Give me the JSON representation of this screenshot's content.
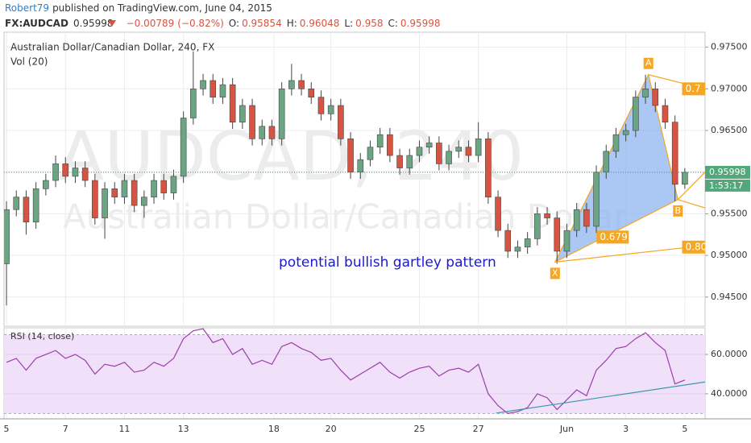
{
  "header": {
    "author": "Robert79",
    "published": "published on TradingView.com, June 04, 2015"
  },
  "chart_data": {
    "type": "candlestick",
    "symbol": "FX:AUDCAD",
    "title": "Australian Dollar/Canadian Dollar, 240, FX",
    "watermark": "AUDCAD, 240",
    "watermark_subtitle": "Australian Dollar/Canadian Dollar",
    "volume_label": "Vol (20)",
    "change": {
      "value": -0.00789,
      "label": "−0.00789"
    },
    "change_pct": {
      "value": -0.82,
      "label": "(−0.82%)"
    },
    "ohlc_labels": [
      "O:",
      "H:",
      "L:",
      "C:"
    ],
    "countdown": "1:53:17",
    "annotation": "potential bullish gartley pattern",
    "up_color": "#6ba583",
    "down_color": "#d75442",
    "open": [
      0.949,
      0.9555,
      0.957,
      0.954,
      0.958,
      0.959,
      0.961,
      0.9595,
      0.9605,
      0.959,
      0.9545,
      0.958,
      0.957,
      0.959,
      0.956,
      0.957,
      0.959,
      0.9575,
      0.9595,
      0.9665,
      0.97,
      0.971,
      0.969,
      0.9705,
      0.966,
      0.968,
      0.964,
      0.9655,
      0.964,
      0.97,
      0.971,
      0.97,
      0.969,
      0.967,
      0.968,
      0.964,
      0.96,
      0.9615,
      0.963,
      0.9645,
      0.962,
      0.9605,
      0.962,
      0.963,
      0.9635,
      0.961,
      0.9625,
      0.963,
      0.962,
      0.964,
      0.957,
      0.953,
      0.9505,
      0.951,
      0.952,
      0.955,
      0.9545,
      0.9505,
      0.953,
      0.9555,
      0.9535,
      0.96,
      0.9625,
      0.9645,
      0.965,
      0.969,
      0.97,
      0.968,
      0.966,
      0.95854
    ],
    "high": [
      0.9565,
      0.9578,
      0.9578,
      0.9588,
      0.9598,
      0.962,
      0.9618,
      0.9613,
      0.9613,
      0.9598,
      0.9588,
      0.9588,
      0.9598,
      0.9598,
      0.9578,
      0.9598,
      0.9598,
      0.9603,
      0.9673,
      0.9745,
      0.9718,
      0.9718,
      0.9713,
      0.9713,
      0.9688,
      0.9688,
      0.9663,
      0.9663,
      0.9708,
      0.973,
      0.9718,
      0.9708,
      0.9698,
      0.9688,
      0.9688,
      0.9648,
      0.9623,
      0.9638,
      0.9653,
      0.9653,
      0.9628,
      0.9628,
      0.9638,
      0.9643,
      0.9643,
      0.9633,
      0.9638,
      0.9638,
      0.966,
      0.9648,
      0.9578,
      0.9538,
      0.9518,
      0.9528,
      0.9558,
      0.9558,
      0.9553,
      0.9538,
      0.9563,
      0.9563,
      0.9608,
      0.9633,
      0.9653,
      0.9658,
      0.9698,
      0.9717,
      0.9708,
      0.9688,
      0.9668,
      0.96048
    ],
    "low": [
      0.944,
      0.9547,
      0.9525,
      0.9532,
      0.9572,
      0.9582,
      0.9587,
      0.9587,
      0.9582,
      0.9537,
      0.952,
      0.9562,
      0.9562,
      0.9552,
      0.9545,
      0.9562,
      0.9567,
      0.9567,
      0.9587,
      0.9657,
      0.9692,
      0.9682,
      0.9682,
      0.9652,
      0.9652,
      0.9632,
      0.9632,
      0.9632,
      0.9632,
      0.9692,
      0.9692,
      0.9682,
      0.9662,
      0.9662,
      0.9632,
      0.9592,
      0.9592,
      0.9607,
      0.9622,
      0.9612,
      0.9597,
      0.9597,
      0.9612,
      0.9622,
      0.9602,
      0.9602,
      0.9617,
      0.9612,
      0.9612,
      0.9562,
      0.9522,
      0.9497,
      0.9497,
      0.9502,
      0.9512,
      0.9537,
      0.949,
      0.9497,
      0.9522,
      0.9527,
      0.9527,
      0.9592,
      0.9617,
      0.9637,
      0.9642,
      0.9682,
      0.9672,
      0.9652,
      0.9565,
      0.958
    ],
    "close": [
      0.9555,
      0.957,
      0.954,
      0.958,
      0.959,
      0.961,
      0.9595,
      0.9605,
      0.959,
      0.9545,
      0.958,
      0.957,
      0.959,
      0.956,
      0.957,
      0.959,
      0.9575,
      0.9595,
      0.9665,
      0.97,
      0.971,
      0.969,
      0.9705,
      0.966,
      0.968,
      0.964,
      0.9655,
      0.964,
      0.97,
      0.971,
      0.97,
      0.969,
      0.967,
      0.968,
      0.964,
      0.96,
      0.9615,
      0.963,
      0.9645,
      0.962,
      0.9605,
      0.962,
      0.963,
      0.9635,
      0.961,
      0.9625,
      0.963,
      0.962,
      0.964,
      0.957,
      0.953,
      0.9505,
      0.951,
      0.952,
      0.955,
      0.9545,
      0.9505,
      0.953,
      0.9555,
      0.9535,
      0.96,
      0.9625,
      0.9645,
      0.965,
      0.969,
      0.97,
      0.968,
      0.966,
      0.95854,
      0.95998
    ],
    "xlim": [
      -0.25,
      71.06
    ],
    "xticks": [
      {
        "value": 0,
        "label": "5"
      },
      {
        "value": 6,
        "label": "7"
      },
      {
        "value": 12,
        "label": "11"
      },
      {
        "value": 18,
        "label": "13"
      },
      {
        "value": 27.2,
        "label": "18"
      },
      {
        "value": 33,
        "label": "20"
      },
      {
        "value": 42,
        "label": "25"
      },
      {
        "value": 48,
        "label": "27"
      },
      {
        "value": 57,
        "label": "Jun"
      },
      {
        "value": 63,
        "label": "3"
      },
      {
        "value": 69,
        "label": "5"
      }
    ],
    "ylim": [
      0.9415,
      0.9768
    ],
    "yticks": [
      {
        "value": 0.945,
        "label": "0.94500"
      },
      {
        "value": 0.95,
        "label": "0.95000"
      },
      {
        "value": 0.955,
        "label": "0.95500"
      },
      {
        "value": 0.96,
        "label": "0.96000"
      },
      {
        "value": 0.965,
        "label": "0.96500"
      },
      {
        "value": 0.97,
        "label": "0.97000"
      },
      {
        "value": 0.975,
        "label": "0.97500"
      }
    ],
    "grid": true,
    "pattern": {
      "color": "#f5a623",
      "fill": "#8fb4ef",
      "points": [
        {
          "label": "X",
          "x": 55.8,
          "y": 0.9492
        },
        {
          "label": "A",
          "x": 65.3,
          "y": 0.9717
        },
        {
          "label": "B",
          "x": 68.3,
          "y": 0.9567
        }
      ],
      "ratios": [
        {
          "label": "0.679",
          "x": 61.5,
          "y": 0.9522
        },
        {
          "label": "0.80",
          "x": 70.2,
          "y": 0.951
        },
        {
          "label": "0.7",
          "x": 70.2,
          "y": 0.97
        }
      ],
      "lines": [
        [
          [
            55.8,
            0.9492
          ],
          [
            71.06,
            0.9512
          ]
        ],
        [
          [
            65.3,
            0.9717
          ],
          [
            71.06,
            0.97
          ]
        ],
        [
          [
            68.3,
            0.9567
          ],
          [
            71.06,
            0.96
          ]
        ],
        [
          [
            68.3,
            0.9567
          ],
          [
            71.06,
            0.9557
          ]
        ]
      ]
    },
    "rsi": {
      "label": "RSI (14, close)",
      "color": "#9b3fa8",
      "values": [
        56,
        58,
        52,
        58,
        60,
        62,
        58,
        60,
        57,
        50,
        55,
        54,
        56,
        51,
        52,
        56,
        54,
        58,
        68,
        72,
        73,
        66,
        68,
        60,
        63,
        55,
        57,
        55,
        64,
        66,
        63,
        61,
        57,
        58,
        52,
        47,
        50,
        53,
        56,
        51,
        48,
        51,
        53,
        54,
        49,
        52,
        53,
        51,
        55,
        40,
        34,
        30,
        31,
        33,
        40,
        38,
        32,
        37,
        42,
        39,
        52,
        57,
        63,
        64,
        68,
        71,
        66,
        62,
        45,
        47
      ],
      "ylim": [
        27.3,
        73.5
      ],
      "yticks": [
        {
          "value": 40,
          "label": "40.0000"
        },
        {
          "value": 60,
          "label": "60.0000"
        }
      ],
      "bands": [
        30,
        70
      ],
      "trendline": [
        [
          49.8,
          30.2
        ],
        [
          71.06,
          46
        ]
      ]
    }
  }
}
